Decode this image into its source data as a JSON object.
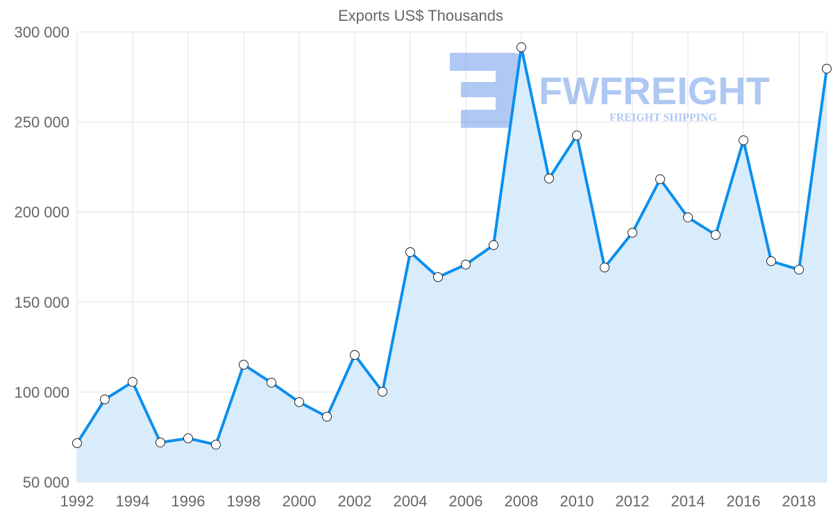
{
  "chart_data": {
    "type": "area",
    "title": "Exports US$ Thousands",
    "xlabel": "",
    "ylabel": "",
    "x": [
      1992,
      1993,
      1994,
      1995,
      1996,
      1997,
      1998,
      1999,
      2000,
      2001,
      2002,
      2003,
      2004,
      2005,
      2006,
      2007,
      2008,
      2009,
      2010,
      2011,
      2012,
      2013,
      2014,
      2015,
      2016,
      2017,
      2018,
      2019
    ],
    "series": [
      {
        "name": "Exports US$ Thousands",
        "values": [
          71600,
          95900,
          105600,
          72000,
          74300,
          70800,
          115200,
          105200,
          94400,
          86300,
          120600,
          100200,
          177700,
          163800,
          170800,
          181600,
          291500,
          218600,
          242500,
          169200,
          188500,
          218200,
          197000,
          187300,
          239800,
          172700,
          168000,
          279600
        ]
      }
    ],
    "ylim": [
      50000,
      300000
    ],
    "yticks": [
      50000,
      100000,
      150000,
      200000,
      250000,
      300000
    ],
    "ytick_labels": [
      "50 000",
      "100 000",
      "150 000",
      "200 000",
      "250 000",
      "300 000"
    ],
    "xlim": [
      1992,
      2019
    ],
    "xtick_labels": [
      "1992",
      "1994",
      "1996",
      "1998",
      "2000",
      "2002",
      "2004",
      "2006",
      "2008",
      "2010",
      "2012",
      "2014",
      "2016",
      "2018"
    ],
    "grid": true,
    "line_color": "#0a8fef",
    "fill_color": "#d9ecfc"
  },
  "watermark": {
    "brand": "FWFREIGHT",
    "tagline": "FREIGHT SHIPPING"
  }
}
